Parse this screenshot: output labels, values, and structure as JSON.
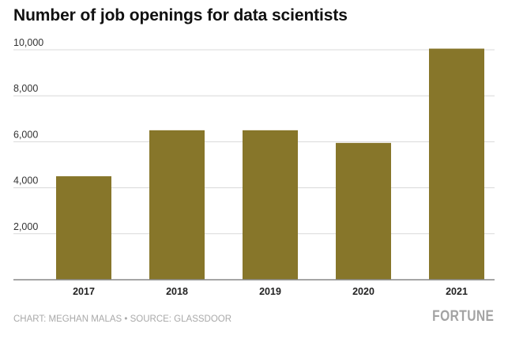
{
  "chart_data": {
    "type": "bar",
    "title": "Number of job openings for data scientists",
    "categories": [
      "2017",
      "2018",
      "2019",
      "2020",
      "2021"
    ],
    "values": [
      4500,
      6500,
      6500,
      5950,
      10050
    ],
    "ylim": [
      0,
      10000
    ],
    "yticks": [
      2000,
      4000,
      6000,
      8000,
      10000
    ],
    "ytick_labels": [
      "2,000",
      "4,000",
      "6,000",
      "8,000",
      "10,000"
    ],
    "xlabel": "",
    "ylabel": "",
    "grid": true,
    "bar_color": "#87762a"
  },
  "footer": {
    "credit": "CHART: MEGHAN MALAS • SOURCE: GLASSDOOR",
    "brand": "FORTUNE"
  },
  "colors": {
    "bar": "#87762a",
    "grid": "#d8d8d8",
    "baseline": "#888888",
    "text": "#111111",
    "muted": "#a9a9a9"
  }
}
